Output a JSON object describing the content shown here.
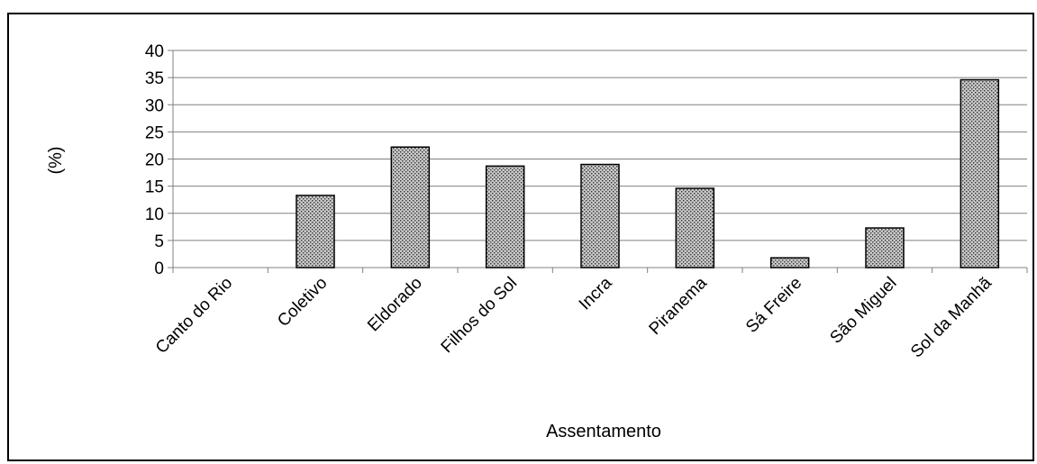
{
  "chart_data": {
    "type": "bar",
    "categories": [
      "Canto do Rio",
      "Coletivo",
      "Eldorado",
      "Filhos do Sol",
      "Incra",
      "Piranema",
      "Sá Freire",
      "São Miguel",
      "Sol da Manhã"
    ],
    "values": [
      0,
      13.3,
      22.2,
      18.7,
      19.0,
      14.6,
      1.8,
      7.3,
      34.6
    ],
    "title": "",
    "xlabel": "Assentamento",
    "ylabel": "(%)",
    "ylim": [
      0,
      40
    ],
    "yticks": [
      0,
      5,
      10,
      15,
      20,
      25,
      30,
      35,
      40
    ],
    "grid": true,
    "legend": "none",
    "colors": {
      "bar_fill": "#c8c8c8",
      "bar_dots": "#333333",
      "bar_stroke": "#000000",
      "grid": "#808080",
      "axis": "#808080"
    }
  }
}
